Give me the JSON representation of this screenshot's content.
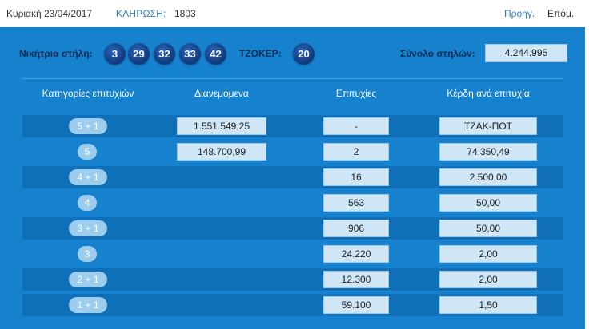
{
  "header": {
    "date": "Κυριακή 23/04/2017",
    "draw_label": "ΚΛΗΡΩΣΗ:",
    "draw_number": "1803",
    "prev_label": "Προηγ.",
    "next_label": "Επόμ."
  },
  "winning": {
    "label": "Νικήτρια στήλη:",
    "numbers": [
      "3",
      "29",
      "32",
      "33",
      "42"
    ],
    "joker_label": "ΤΖΟΚΕΡ:",
    "joker": "20",
    "total_label": "Σύνολο στηλών:",
    "total": "4.244.995"
  },
  "table": {
    "headers": [
      "Κατηγορίες επιτυχιών",
      "Διανεμόμενα",
      "Επιτυχίες",
      "Κέρδη ανά επιτυχία"
    ],
    "rows": [
      {
        "category": "5 + 1",
        "distributed": "1.551.549,25",
        "wins": "-",
        "prize": "ΤΖΑΚ-ΠΟΤ"
      },
      {
        "category": "5",
        "distributed": "148.700,99",
        "wins": "2",
        "prize": "74.350,49"
      },
      {
        "category": "4 + 1",
        "distributed": "",
        "wins": "16",
        "prize": "2.500,00"
      },
      {
        "category": "4",
        "distributed": "",
        "wins": "563",
        "prize": "50,00"
      },
      {
        "category": "3 + 1",
        "distributed": "",
        "wins": "906",
        "prize": "50,00"
      },
      {
        "category": "3",
        "distributed": "",
        "wins": "24.220",
        "prize": "2,00"
      },
      {
        "category": "2 + 1",
        "distributed": "",
        "wins": "12.300",
        "prize": "2,00"
      },
      {
        "category": "1 + 1",
        "distributed": "",
        "wins": "59.100",
        "prize": "1,50"
      }
    ]
  },
  "colors": {
    "panel": "#1682ce",
    "row_dark": "#0f70b8",
    "ball": "#133e85",
    "value_box": "#cfe6f7",
    "link": "#2f7fc1"
  }
}
